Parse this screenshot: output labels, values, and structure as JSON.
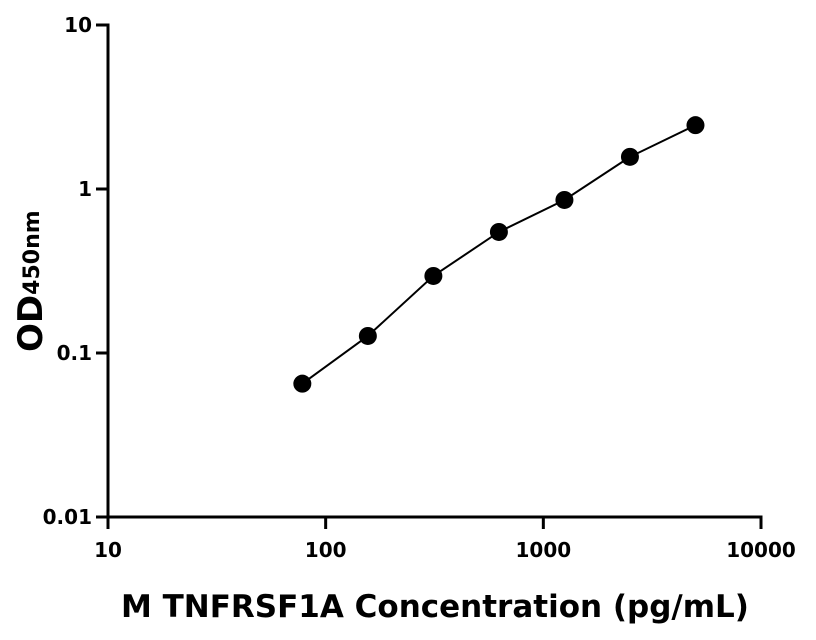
{
  "chart_data": {
    "type": "scatter",
    "x_label": "M TNFRSF1A Concentration (pg/mL)",
    "y_label": "OD",
    "y_label_sub": "450nm",
    "x": [
      78.125,
      156.25,
      312.5,
      625,
      1250,
      2500,
      5000
    ],
    "values": [
      0.065,
      0.127,
      0.295,
      0.547,
      0.857,
      1.57,
      2.45
    ],
    "color": "#000000",
    "fit_line": true,
    "xscale": "log",
    "yscale": "log",
    "xlim": [
      10,
      10000
    ],
    "xticks": [
      10,
      100,
      1000,
      10000
    ],
    "ylim": [
      0.01,
      10
    ],
    "yticks": [
      0.01,
      0.1,
      1,
      10
    ],
    "grid": false
  }
}
